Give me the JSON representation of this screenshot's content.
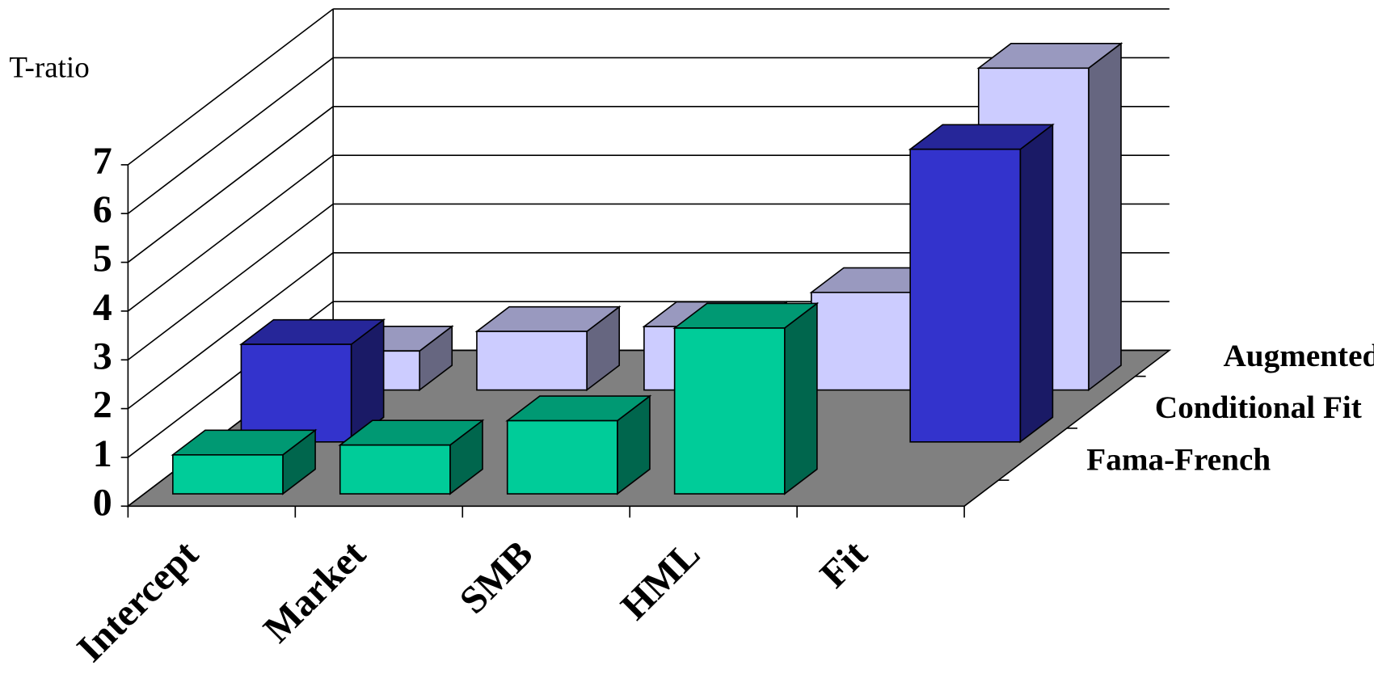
{
  "chart_data": {
    "type": "bar3d",
    "y_label": "T-ratio",
    "categories": [
      "Intercept",
      "Market",
      "SMB",
      "HML",
      "Fit"
    ],
    "series": [
      {
        "name": "Fama-French",
        "color": "#00cc99",
        "values": [
          0.8,
          1.0,
          1.5,
          3.4,
          null
        ]
      },
      {
        "name": "Conditional Fit",
        "color": "#3333cc",
        "values": [
          2.0,
          null,
          null,
          null,
          6.0
        ]
      },
      {
        "name": "Augmented",
        "color": "#ccccff",
        "values": [
          0.8,
          1.2,
          1.3,
          2.0,
          6.6
        ]
      }
    ],
    "ylim": [
      0,
      7
    ],
    "yticks": [
      0,
      1,
      2,
      3,
      4,
      5,
      6,
      7
    ],
    "grid": true
  }
}
